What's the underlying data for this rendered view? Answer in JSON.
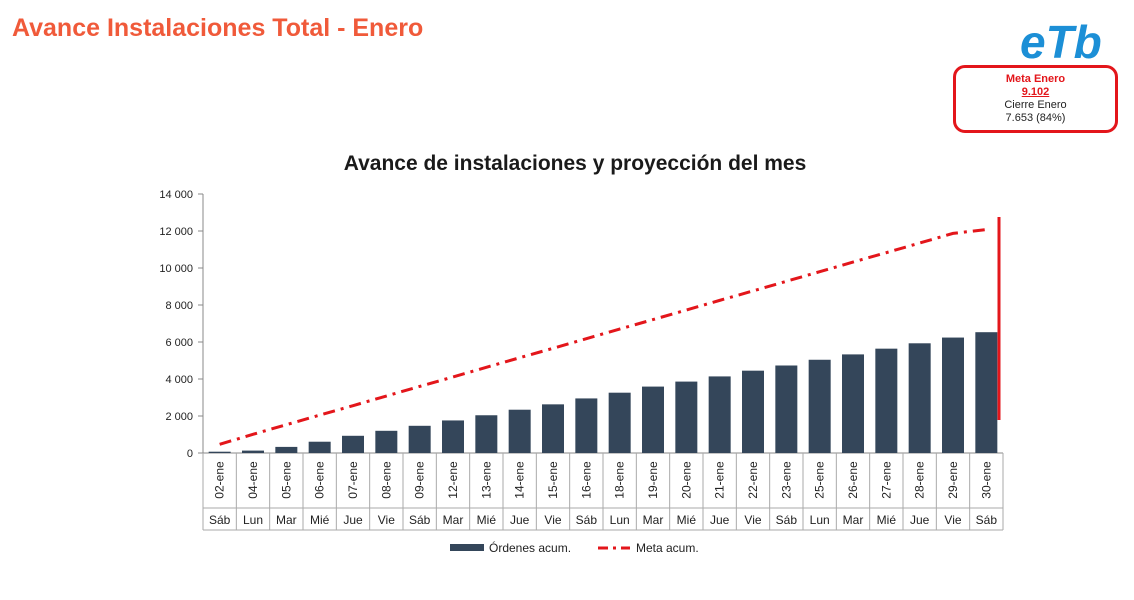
{
  "page": {
    "title": "Avance Instalaciones Total - Enero",
    "logo_text": "eTb"
  },
  "goal_box": {
    "line1": "Meta Enero",
    "line2": "9.102",
    "line3": "Cierre Enero",
    "line4": "7.653 (84%)"
  },
  "colors": {
    "title": "#f05a3a",
    "bars": "#34465a",
    "target_line": "#e3161b",
    "logo": "#1c8fd6"
  },
  "chart_data": {
    "type": "bar",
    "title": "Avance de instalaciones y proyección del mes",
    "categories": [
      "02-ene",
      "04-ene",
      "05-ene",
      "06-ene",
      "07-ene",
      "08-ene",
      "09-ene",
      "12-ene",
      "13-ene",
      "14-ene",
      "15-ene",
      "16-ene",
      "18-ene",
      "19-ene",
      "20-ene",
      "21-ene",
      "22-ene",
      "23-ene",
      "25-ene",
      "26-ene",
      "27-ene",
      "28-ene",
      "29-ene",
      "30-ene"
    ],
    "weekdays": [
      "Sáb",
      "Lun",
      "Mar",
      "Mié",
      "Jue",
      "Vie",
      "Sáb",
      "Mar",
      "Mié",
      "Jue",
      "Vie",
      "Sáb",
      "Lun",
      "Mar",
      "Mié",
      "Jue",
      "Vie",
      "Sáb",
      "Lun",
      "Mar",
      "Mié",
      "Jue",
      "Vie",
      "Sáb"
    ],
    "series": [
      {
        "name": "Órdenes acum.",
        "type": "bar",
        "values": [
          70,
          130,
          330,
          610,
          930,
          1200,
          1470,
          1760,
          2040,
          2340,
          2630,
          2950,
          3260,
          3590,
          3860,
          4140,
          4450,
          4730,
          5040,
          5330,
          5640,
          5930,
          6240,
          6530
        ]
      },
      {
        "name": "Meta acum.",
        "type": "line",
        "dash": "dash-dot",
        "values": [
          470,
          1010,
          1530,
          2050,
          2560,
          3080,
          3600,
          4110,
          4630,
          5150,
          5660,
          6180,
          6700,
          7210,
          7730,
          8250,
          8760,
          9280,
          9800,
          10320,
          10830,
          11350,
          11870,
          12080
        ]
      }
    ],
    "ylim": [
      0,
      14000
    ],
    "yticks": [
      "0",
      "2 000",
      "4 000",
      "6 000",
      "8 000",
      "10 000",
      "12 000",
      "14 000"
    ],
    "legend": "bottom",
    "xlabel": "",
    "ylabel": ""
  }
}
